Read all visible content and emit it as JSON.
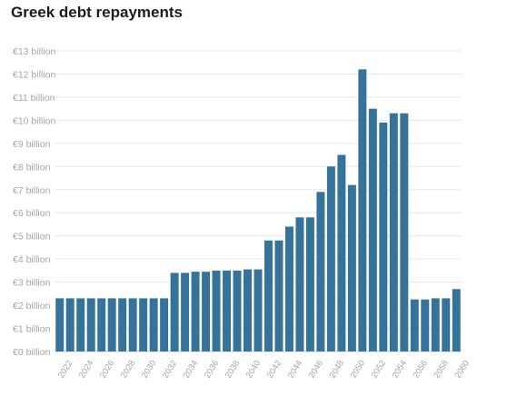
{
  "chart_data": {
    "type": "bar",
    "title": "Greek debt repayments",
    "xlabel": "",
    "ylabel": "",
    "ylim": [
      0,
      13
    ],
    "y_ticks": [
      {
        "value": 0,
        "label": "€0 billion"
      },
      {
        "value": 1,
        "label": "€1 billion"
      },
      {
        "value": 2,
        "label": "€2 billion"
      },
      {
        "value": 3,
        "label": "€3 billion"
      },
      {
        "value": 4,
        "label": "€4 billion"
      },
      {
        "value": 5,
        "label": "€5 billion"
      },
      {
        "value": 6,
        "label": "€6 billion"
      },
      {
        "value": 7,
        "label": "€7 billion"
      },
      {
        "value": 8,
        "label": "€8 billion"
      },
      {
        "value": 9,
        "label": "€9 billion"
      },
      {
        "value": 10,
        "label": "€10 billion"
      },
      {
        "value": 11,
        "label": "€11 billion"
      },
      {
        "value": 12,
        "label": "€12 billion"
      },
      {
        "value": 13,
        "label": "€13 billion"
      }
    ],
    "x_tick_labels": [
      "2022",
      "2024",
      "2026",
      "2028",
      "2030",
      "2032",
      "2034",
      "2036",
      "2038",
      "2040",
      "2042",
      "2044",
      "2046",
      "2048",
      "2050",
      "2052",
      "2054",
      "2056",
      "2058",
      "2060"
    ],
    "categories": [
      "2022",
      "2023",
      "2024",
      "2025",
      "2026",
      "2027",
      "2028",
      "2029",
      "2030",
      "2031",
      "2032",
      "2033",
      "2034",
      "2035",
      "2036",
      "2037",
      "2038",
      "2039",
      "2040",
      "2041",
      "2042",
      "2043",
      "2044",
      "2045",
      "2046",
      "2047",
      "2048",
      "2049",
      "2050",
      "2051",
      "2052",
      "2053",
      "2054",
      "2055",
      "2056",
      "2057",
      "2058",
      "2059",
      "2060"
    ],
    "values": [
      2.3,
      2.3,
      2.3,
      2.3,
      2.3,
      2.3,
      2.3,
      2.3,
      2.3,
      2.3,
      2.3,
      3.4,
      3.4,
      3.45,
      3.45,
      3.5,
      3.5,
      3.5,
      3.55,
      3.55,
      4.8,
      4.8,
      5.4,
      5.8,
      5.8,
      6.9,
      8.0,
      8.5,
      7.2,
      12.2,
      10.5,
      9.9,
      10.3,
      10.3,
      2.25,
      2.25,
      2.3,
      2.3,
      2.7
    ],
    "bar_color": "#35729c",
    "grid": true,
    "legend": "none"
  }
}
